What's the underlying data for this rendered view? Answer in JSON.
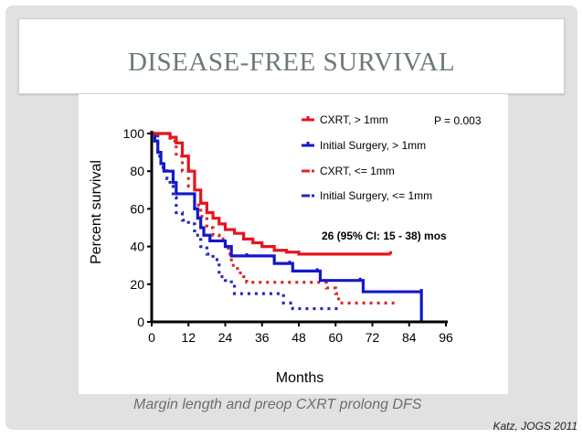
{
  "slide": {
    "title": "DISEASE-FREE SURVIVAL",
    "caption": "Margin length and preop CXRT prolong DFS",
    "citation": "Katz, JOGS 2011"
  },
  "chart_data": {
    "type": "line",
    "subtype": "kaplan-meier-step",
    "title": "",
    "xlabel": "Months",
    "ylabel": "Percent survival",
    "xlim": [
      0,
      96
    ],
    "ylim": [
      0,
      100
    ],
    "xticks": [
      0,
      12,
      24,
      36,
      48,
      60,
      72,
      84,
      96
    ],
    "yticks": [
      0,
      20,
      40,
      60,
      80,
      100
    ],
    "grid": false,
    "legend_position": "top-right",
    "annotations": {
      "p_value": "P = 0.003",
      "median": "26 (95% CI: 15 - 38) mos"
    },
    "series": [
      {
        "name": "CXRT, > 1mm",
        "color": "#e8141c",
        "style": "solid",
        "points": [
          [
            0,
            100
          ],
          [
            6,
            98
          ],
          [
            8,
            95
          ],
          [
            10,
            88
          ],
          [
            12,
            80
          ],
          [
            14,
            70
          ],
          [
            16,
            63
          ],
          [
            18,
            58
          ],
          [
            20,
            55
          ],
          [
            22,
            52
          ],
          [
            24,
            49
          ],
          [
            27,
            47
          ],
          [
            30,
            44
          ],
          [
            33,
            42
          ],
          [
            36,
            40
          ],
          [
            40,
            38
          ],
          [
            44,
            37
          ],
          [
            48,
            36
          ],
          [
            78,
            36
          ]
        ]
      },
      {
        "name": "Initial Surgery, > 1mm",
        "color": "#1418c8",
        "style": "solid",
        "points": [
          [
            0,
            100
          ],
          [
            1,
            96
          ],
          [
            2,
            90
          ],
          [
            3,
            84
          ],
          [
            4,
            80
          ],
          [
            7,
            74
          ],
          [
            8,
            68
          ],
          [
            13,
            68
          ],
          [
            14,
            60
          ],
          [
            15,
            55
          ],
          [
            16,
            50
          ],
          [
            17,
            46
          ],
          [
            19,
            43
          ],
          [
            22,
            43
          ],
          [
            24,
            40
          ],
          [
            26,
            35
          ],
          [
            31,
            35
          ],
          [
            40,
            31
          ],
          [
            45,
            31
          ],
          [
            46,
            27
          ],
          [
            54,
            27
          ],
          [
            55,
            22
          ],
          [
            68,
            22
          ],
          [
            69,
            16
          ],
          [
            88,
            16
          ],
          [
            88,
            0
          ]
        ]
      },
      {
        "name": "CXRT, <= 1mm",
        "color": "#d8282c",
        "style": "dotted",
        "points": [
          [
            0,
            100
          ],
          [
            4,
            100
          ],
          [
            6,
            96
          ],
          [
            8,
            88
          ],
          [
            10,
            80
          ],
          [
            12,
            72
          ],
          [
            14,
            62
          ],
          [
            16,
            56
          ],
          [
            18,
            50
          ],
          [
            20,
            46
          ],
          [
            22,
            44
          ],
          [
            24,
            40
          ],
          [
            25,
            36
          ],
          [
            26,
            30
          ],
          [
            28,
            26
          ],
          [
            30,
            24
          ],
          [
            31,
            21
          ],
          [
            55,
            21
          ],
          [
            57,
            18
          ],
          [
            60,
            15
          ],
          [
            61,
            10
          ],
          [
            80,
            11
          ]
        ]
      },
      {
        "name": "Initial Surgery, <= 1mm",
        "color": "#2228c0",
        "style": "dotted",
        "points": [
          [
            0,
            100
          ],
          [
            2,
            88
          ],
          [
            3,
            82
          ],
          [
            5,
            76
          ],
          [
            6,
            72
          ],
          [
            7,
            66
          ],
          [
            8,
            58
          ],
          [
            10,
            54
          ],
          [
            12,
            52
          ],
          [
            14,
            46
          ],
          [
            16,
            40
          ],
          [
            18,
            36
          ],
          [
            20,
            33
          ],
          [
            22,
            24
          ],
          [
            24,
            22
          ],
          [
            26,
            20
          ],
          [
            27,
            15
          ],
          [
            40,
            15
          ],
          [
            43,
            10
          ],
          [
            46,
            7
          ],
          [
            62,
            7
          ]
        ]
      }
    ]
  }
}
